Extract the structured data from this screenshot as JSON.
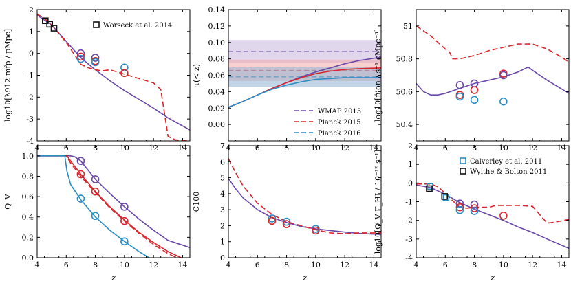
{
  "colors": {
    "purple": "#6A48A8",
    "red": "#D7262C",
    "blue": "#2B8CC4",
    "band_purple": "#C9B6DE",
    "band_red": "#F2A9A9",
    "band_blue": "#8FB3D4"
  },
  "chart_data": [
    {
      "id": "mfp",
      "type": "line",
      "xlabel": "",
      "ylabel": "log10[λ912 mfp / pMpc]",
      "xlim": [
        4,
        14.5
      ],
      "ylim": [
        -4,
        2
      ],
      "xticks": [
        4,
        6,
        8,
        10,
        12,
        14
      ],
      "yticks": [
        -4,
        -3,
        -2,
        -1,
        0,
        1,
        2
      ],
      "series": [
        {
          "name": "model-purple",
          "color": "purple",
          "dash": "",
          "x": [
            4,
            5,
            6,
            7,
            8,
            9,
            10,
            11,
            12,
            13,
            14.5
          ],
          "y": [
            1.75,
            1.3,
            0.55,
            -0.2,
            -0.75,
            -1.25,
            -1.7,
            -2.1,
            -2.5,
            -2.95,
            -3.5
          ]
        },
        {
          "name": "model-red",
          "color": "red",
          "dash": "8,4",
          "x": [
            4,
            4.5,
            5,
            5.5,
            6,
            6.5,
            7,
            7.5,
            8,
            8.5,
            9,
            9.5,
            10,
            11,
            12,
            12.5,
            13,
            13.5,
            14.5
          ],
          "y": [
            1.8,
            1.6,
            1.3,
            0.9,
            0.5,
            0.0,
            -0.5,
            -0.65,
            -0.75,
            -0.8,
            -0.75,
            -0.85,
            -0.95,
            -1.15,
            -1.35,
            -1.65,
            -3.8,
            -3.95,
            -4.0
          ]
        }
      ],
      "points": [
        {
          "x": 4.56,
          "y": 1.49,
          "marker": "square",
          "color": "black"
        },
        {
          "x": 4.86,
          "y": 1.33,
          "marker": "square",
          "color": "black"
        },
        {
          "x": 5.16,
          "y": 1.15,
          "marker": "square",
          "color": "black"
        },
        {
          "x": 7,
          "y": 0.0,
          "marker": "circle",
          "color": "purple"
        },
        {
          "x": 7,
          "y": -0.15,
          "marker": "circle",
          "color": "red"
        },
        {
          "x": 7,
          "y": -0.25,
          "marker": "circle",
          "color": "blue"
        },
        {
          "x": 8,
          "y": -0.2,
          "marker": "circle",
          "color": "purple"
        },
        {
          "x": 8,
          "y": -0.35,
          "marker": "circle",
          "color": "red"
        },
        {
          "x": 8,
          "y": -0.4,
          "marker": "circle",
          "color": "blue"
        },
        {
          "x": 10,
          "y": -0.65,
          "marker": "circle",
          "color": "blue"
        },
        {
          "x": 10,
          "y": -0.9,
          "marker": "circle",
          "color": "red"
        }
      ],
      "legend": [
        {
          "label": "Worseck et al. 2014",
          "marker": "square",
          "color": "black"
        }
      ],
      "legend_position": "top-right"
    },
    {
      "id": "tau",
      "type": "line",
      "xlabel": "",
      "ylabel": "τ(< z)",
      "xlim": [
        4,
        14.5
      ],
      "ylim": [
        -0.02,
        0.14
      ],
      "xticks": [
        4,
        6,
        8,
        10,
        12,
        14
      ],
      "yticks": [
        0.0,
        0.02,
        0.04,
        0.06,
        0.08,
        0.1,
        0.12,
        0.14
      ],
      "yticklabels": [
        "0.00",
        "0.02",
        "0.04",
        "0.06",
        "0.08",
        "0.10",
        "0.12",
        "0.14"
      ],
      "bands": [
        {
          "color": "band_purple",
          "center": 0.089,
          "low": 0.075,
          "high": 0.103
        },
        {
          "color": "band_red",
          "center": 0.066,
          "low": 0.053,
          "high": 0.079
        },
        {
          "color": "band_blue",
          "center": 0.058,
          "low": 0.046,
          "high": 0.07
        }
      ],
      "series": [
        {
          "name": "model-purple",
          "color": "purple",
          "dash": "",
          "x": [
            4,
            5,
            6,
            7,
            8,
            9,
            10,
            11,
            12,
            13,
            14.5
          ],
          "y": [
            0.021,
            0.028,
            0.036,
            0.044,
            0.051,
            0.058,
            0.064,
            0.069,
            0.074,
            0.078,
            0.082
          ]
        },
        {
          "name": "model-red",
          "color": "red",
          "dash": "",
          "x": [
            4,
            5,
            6,
            7,
            8,
            9,
            10,
            11,
            12,
            13,
            14.5
          ],
          "y": [
            0.021,
            0.028,
            0.036,
            0.044,
            0.051,
            0.057,
            0.062,
            0.065,
            0.067,
            0.068,
            0.069
          ]
        },
        {
          "name": "model-blue",
          "color": "blue",
          "dash": "",
          "x": [
            4,
            5,
            6,
            7,
            8,
            9,
            10,
            11,
            12,
            13,
            14.5
          ],
          "y": [
            0.021,
            0.028,
            0.036,
            0.043,
            0.048,
            0.052,
            0.055,
            0.056,
            0.057,
            0.057,
            0.057
          ]
        }
      ],
      "legend": [
        {
          "label": "WMAP 2013",
          "color": "purple"
        },
        {
          "label": "Planck 2015",
          "color": "red"
        },
        {
          "label": "Planck 2016",
          "color": "blue"
        }
      ],
      "legend_position": "lower-right"
    },
    {
      "id": "nion",
      "type": "line",
      "xlabel": "",
      "ylabel": "log10[ṅion / s⁻¹ cMpc⁻³]",
      "xlim": [
        4,
        14.5
      ],
      "ylim": [
        50.3,
        51.1
      ],
      "xticks": [
        4,
        6,
        8,
        10,
        12,
        14
      ],
      "yticks": [
        50.4,
        50.6,
        50.8,
        51.0
      ],
      "series": [
        {
          "name": "model-purple",
          "color": "purple",
          "dash": "",
          "x": [
            4,
            4.5,
            5,
            5.5,
            6,
            7,
            8,
            9,
            10,
            11,
            11.7,
            12,
            13,
            14.5
          ],
          "y": [
            50.65,
            50.6,
            50.58,
            50.58,
            50.59,
            50.62,
            50.65,
            50.67,
            50.69,
            50.72,
            50.75,
            50.73,
            50.67,
            50.59
          ]
        },
        {
          "name": "model-red",
          "color": "red",
          "dash": "8,4",
          "x": [
            4,
            4.5,
            5,
            5.5,
            6,
            6.3,
            6.5,
            7,
            8,
            9,
            10,
            11,
            12,
            13,
            14,
            14.5
          ],
          "y": [
            51.0,
            50.97,
            50.94,
            50.9,
            50.86,
            50.84,
            50.8,
            50.8,
            50.82,
            50.85,
            50.87,
            50.89,
            50.89,
            50.86,
            50.81,
            50.78
          ]
        }
      ],
      "points": [
        {
          "x": 7,
          "y": 50.64,
          "marker": "circle",
          "color": "purple"
        },
        {
          "x": 7,
          "y": 50.58,
          "marker": "circle",
          "color": "red"
        },
        {
          "x": 7,
          "y": 50.57,
          "marker": "circle",
          "color": "blue"
        },
        {
          "x": 8,
          "y": 50.65,
          "marker": "circle",
          "color": "purple"
        },
        {
          "x": 8,
          "y": 50.61,
          "marker": "circle",
          "color": "red"
        },
        {
          "x": 8,
          "y": 50.55,
          "marker": "circle",
          "color": "blue"
        },
        {
          "x": 10,
          "y": 50.71,
          "marker": "circle",
          "color": "red"
        },
        {
          "x": 10,
          "y": 50.7,
          "marker": "circle",
          "color": "purple"
        },
        {
          "x": 10,
          "y": 50.54,
          "marker": "circle",
          "color": "blue"
        }
      ]
    },
    {
      "id": "qv",
      "type": "line",
      "xlabel": "z",
      "ylabel": "Q_V",
      "xlim": [
        4,
        14.5
      ],
      "ylim": [
        0,
        1.1
      ],
      "xticks": [
        4,
        6,
        8,
        10,
        12,
        14
      ],
      "yticks": [
        0.0,
        0.2,
        0.4,
        0.6,
        0.8,
        1.0
      ],
      "yticklabels": [
        "0.0",
        "0.2",
        "0.4",
        "0.6",
        "0.8",
        "1.0"
      ],
      "series": [
        {
          "name": "model-purple",
          "color": "purple",
          "dash": "",
          "x": [
            4,
            6.3,
            6.6,
            7,
            8,
            9,
            10,
            11,
            12,
            13,
            14.5
          ],
          "y": [
            1.0,
            1.0,
            0.99,
            0.95,
            0.77,
            0.63,
            0.5,
            0.38,
            0.27,
            0.17,
            0.1
          ]
        },
        {
          "name": "model-red",
          "color": "red",
          "dash": "",
          "x": [
            4,
            6.05,
            6.3,
            7,
            8,
            9,
            10,
            11,
            12,
            13,
            13.9
          ],
          "y": [
            1.0,
            1.0,
            0.95,
            0.82,
            0.65,
            0.5,
            0.37,
            0.25,
            0.15,
            0.06,
            0.0
          ]
        },
        {
          "name": "model-red-dashed",
          "color": "red",
          "dash": "8,4",
          "x": [
            4,
            6.0,
            6.3,
            7,
            8,
            9,
            10,
            11,
            12,
            13,
            13.6
          ],
          "y": [
            1.0,
            1.0,
            0.93,
            0.8,
            0.64,
            0.49,
            0.36,
            0.24,
            0.13,
            0.04,
            0.0
          ]
        },
        {
          "name": "model-blue",
          "color": "blue",
          "dash": "",
          "x": [
            4,
            5.9,
            6.05,
            6.3,
            7,
            8,
            9,
            10,
            11,
            11.7
          ],
          "y": [
            1.0,
            1.0,
            0.85,
            0.72,
            0.57,
            0.4,
            0.27,
            0.16,
            0.06,
            0.0
          ]
        }
      ],
      "points": [
        {
          "x": 7,
          "y": 0.95,
          "marker": "circle",
          "color": "purple"
        },
        {
          "x": 7,
          "y": 0.82,
          "marker": "circle",
          "color": "red"
        },
        {
          "x": 7,
          "y": 0.58,
          "marker": "circle",
          "color": "blue"
        },
        {
          "x": 8,
          "y": 0.77,
          "marker": "circle",
          "color": "purple"
        },
        {
          "x": 8,
          "y": 0.65,
          "marker": "circle",
          "color": "red"
        },
        {
          "x": 8,
          "y": 0.41,
          "marker": "circle",
          "color": "blue"
        },
        {
          "x": 10,
          "y": 0.5,
          "marker": "circle",
          "color": "purple"
        },
        {
          "x": 10,
          "y": 0.36,
          "marker": "circle",
          "color": "red"
        },
        {
          "x": 10,
          "y": 0.16,
          "marker": "circle",
          "color": "blue"
        }
      ]
    },
    {
      "id": "clump",
      "type": "line",
      "xlabel": "z",
      "ylabel": "C100",
      "xlim": [
        4,
        14.5
      ],
      "ylim": [
        0,
        7
      ],
      "xticks": [
        4,
        6,
        8,
        10,
        12,
        14
      ],
      "yticks": [
        0,
        1,
        2,
        3,
        4,
        5,
        6,
        7
      ],
      "series": [
        {
          "name": "model-purple",
          "color": "purple",
          "dash": "",
          "x": [
            4,
            4.5,
            5,
            6,
            7,
            8,
            9,
            10,
            11,
            12,
            13,
            14.5
          ],
          "y": [
            4.95,
            4.3,
            3.75,
            3.0,
            2.5,
            2.2,
            1.95,
            1.8,
            1.7,
            1.6,
            1.52,
            1.45
          ]
        },
        {
          "name": "model-red",
          "color": "red",
          "dash": "8,4",
          "x": [
            4,
            4.5,
            5,
            6,
            7,
            8,
            9,
            10,
            11,
            12,
            13,
            14.5
          ],
          "y": [
            6.2,
            5.3,
            4.5,
            3.4,
            2.7,
            2.25,
            2.0,
            1.75,
            1.55,
            1.5,
            1.55,
            1.55
          ]
        }
      ],
      "points": [
        {
          "x": 7,
          "y": 2.45,
          "marker": "circle",
          "color": "blue"
        },
        {
          "x": 7,
          "y": 2.3,
          "marker": "circle",
          "color": "red"
        },
        {
          "x": 8,
          "y": 2.25,
          "marker": "circle",
          "color": "blue"
        },
        {
          "x": 8,
          "y": 2.1,
          "marker": "circle",
          "color": "red"
        },
        {
          "x": 10,
          "y": 1.8,
          "marker": "circle",
          "color": "blue"
        },
        {
          "x": 10,
          "y": 1.7,
          "marker": "circle",
          "color": "red"
        }
      ]
    },
    {
      "id": "gamma",
      "type": "line",
      "xlabel": "z",
      "ylabel": "log10[Q_V Γ_HI / 10⁻¹² s⁻¹]",
      "xlim": [
        4,
        14.5
      ],
      "ylim": [
        -4,
        2
      ],
      "xticks": [
        4,
        6,
        8,
        10,
        12,
        14
      ],
      "yticks": [
        -4,
        -3,
        -2,
        -1,
        0,
        1,
        2
      ],
      "series": [
        {
          "name": "model-purple",
          "color": "purple",
          "dash": "",
          "x": [
            4,
            5,
            6,
            7,
            8,
            9,
            10,
            11,
            12,
            13,
            14.5
          ],
          "y": [
            -0.1,
            -0.25,
            -0.6,
            -1.05,
            -1.4,
            -1.7,
            -2.0,
            -2.35,
            -2.65,
            -3.0,
            -3.5
          ]
        },
        {
          "name": "model-red",
          "color": "red",
          "dash": "8,4",
          "x": [
            4,
            4.5,
            5,
            5.5,
            6,
            6.5,
            7,
            7.5,
            8,
            8.5,
            9,
            9.5,
            10,
            11,
            12,
            12.5,
            13,
            13.5,
            14.5
          ],
          "y": [
            -0.05,
            -0.05,
            -0.05,
            -0.2,
            -0.55,
            -0.95,
            -1.3,
            -1.35,
            -1.3,
            -1.3,
            -1.3,
            -1.2,
            -1.2,
            -1.2,
            -1.25,
            -1.7,
            -2.15,
            -2.1,
            -1.95
          ]
        }
      ],
      "points": [
        {
          "x": 4.95,
          "y": -0.18,
          "marker": "square",
          "color": "blue"
        },
        {
          "x": 6.05,
          "y": -0.78,
          "marker": "square",
          "color": "blue"
        },
        {
          "x": 4.9,
          "y": -0.3,
          "marker": "square",
          "color": "black"
        },
        {
          "x": 5.95,
          "y": -0.72,
          "marker": "square",
          "color": "black"
        },
        {
          "x": 7,
          "y": -1.1,
          "marker": "circle",
          "color": "purple"
        },
        {
          "x": 7,
          "y": -1.3,
          "marker": "circle",
          "color": "red"
        },
        {
          "x": 7,
          "y": -1.45,
          "marker": "circle",
          "color": "blue"
        },
        {
          "x": 8,
          "y": -1.15,
          "marker": "circle",
          "color": "purple"
        },
        {
          "x": 8,
          "y": -1.35,
          "marker": "circle",
          "color": "red"
        },
        {
          "x": 8,
          "y": -1.5,
          "marker": "circle",
          "color": "blue"
        },
        {
          "x": 10,
          "y": -1.75,
          "marker": "circle",
          "color": "red"
        }
      ],
      "legend": [
        {
          "label": "Calverley et al. 2011",
          "marker": "square",
          "color": "blue"
        },
        {
          "label": "Wyithe & Bolton 2011",
          "marker": "square",
          "color": "black"
        }
      ],
      "legend_position": "top-right"
    }
  ]
}
